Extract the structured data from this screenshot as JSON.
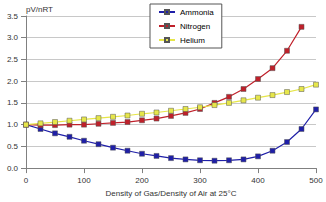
{
  "chart_data": {
    "type": "line",
    "x_label": "Density of Gas/Density of Air at 25°C",
    "y_label": "pV/nRT",
    "x": [
      0,
      25,
      50,
      75,
      100,
      125,
      150,
      175,
      200,
      225,
      250,
      275,
      300,
      325,
      350,
      375,
      400,
      425,
      450,
      475,
      500
    ],
    "series": [
      {
        "name": "Ammonia",
        "color": "#1f1fa8",
        "marker": "square",
        "values": [
          1.0,
          0.9,
          0.8,
          0.72,
          0.63,
          0.55,
          0.47,
          0.4,
          0.33,
          0.28,
          0.23,
          0.2,
          0.18,
          0.17,
          0.18,
          0.2,
          0.27,
          0.4,
          0.6,
          0.9,
          1.35
        ]
      },
      {
        "name": "Nitrogen",
        "color": "#c0202a",
        "marker": "square",
        "values": [
          1.0,
          0.99,
          0.99,
          1.0,
          1.0,
          1.02,
          1.04,
          1.06,
          1.1,
          1.14,
          1.2,
          1.27,
          1.36,
          1.5,
          1.64,
          1.82,
          2.05,
          2.3,
          2.7,
          3.25,
          null
        ]
      },
      {
        "name": "Helium",
        "color": "#e6e64a",
        "marker": "square",
        "values": [
          1.0,
          1.03,
          1.06,
          1.09,
          1.12,
          1.15,
          1.18,
          1.21,
          1.25,
          1.28,
          1.32,
          1.36,
          1.4,
          1.45,
          1.5,
          1.56,
          1.62,
          1.68,
          1.75,
          1.82,
          1.92
        ]
      }
    ],
    "xlim": [
      0,
      500
    ],
    "xticks": [
      0,
      100,
      200,
      300,
      400,
      500
    ],
    "ylim": [
      0,
      3.5
    ],
    "yticks": [
      {
        "value": 0,
        "label": "0.0"
      },
      0.5,
      {
        "value": 1,
        "label": "1.0"
      },
      1.5,
      {
        "value": 2,
        "label": "2.0"
      },
      2.5,
      {
        "value": 3,
        "label": "3.0"
      },
      3.5
    ],
    "grid": true,
    "legend": "top"
  }
}
